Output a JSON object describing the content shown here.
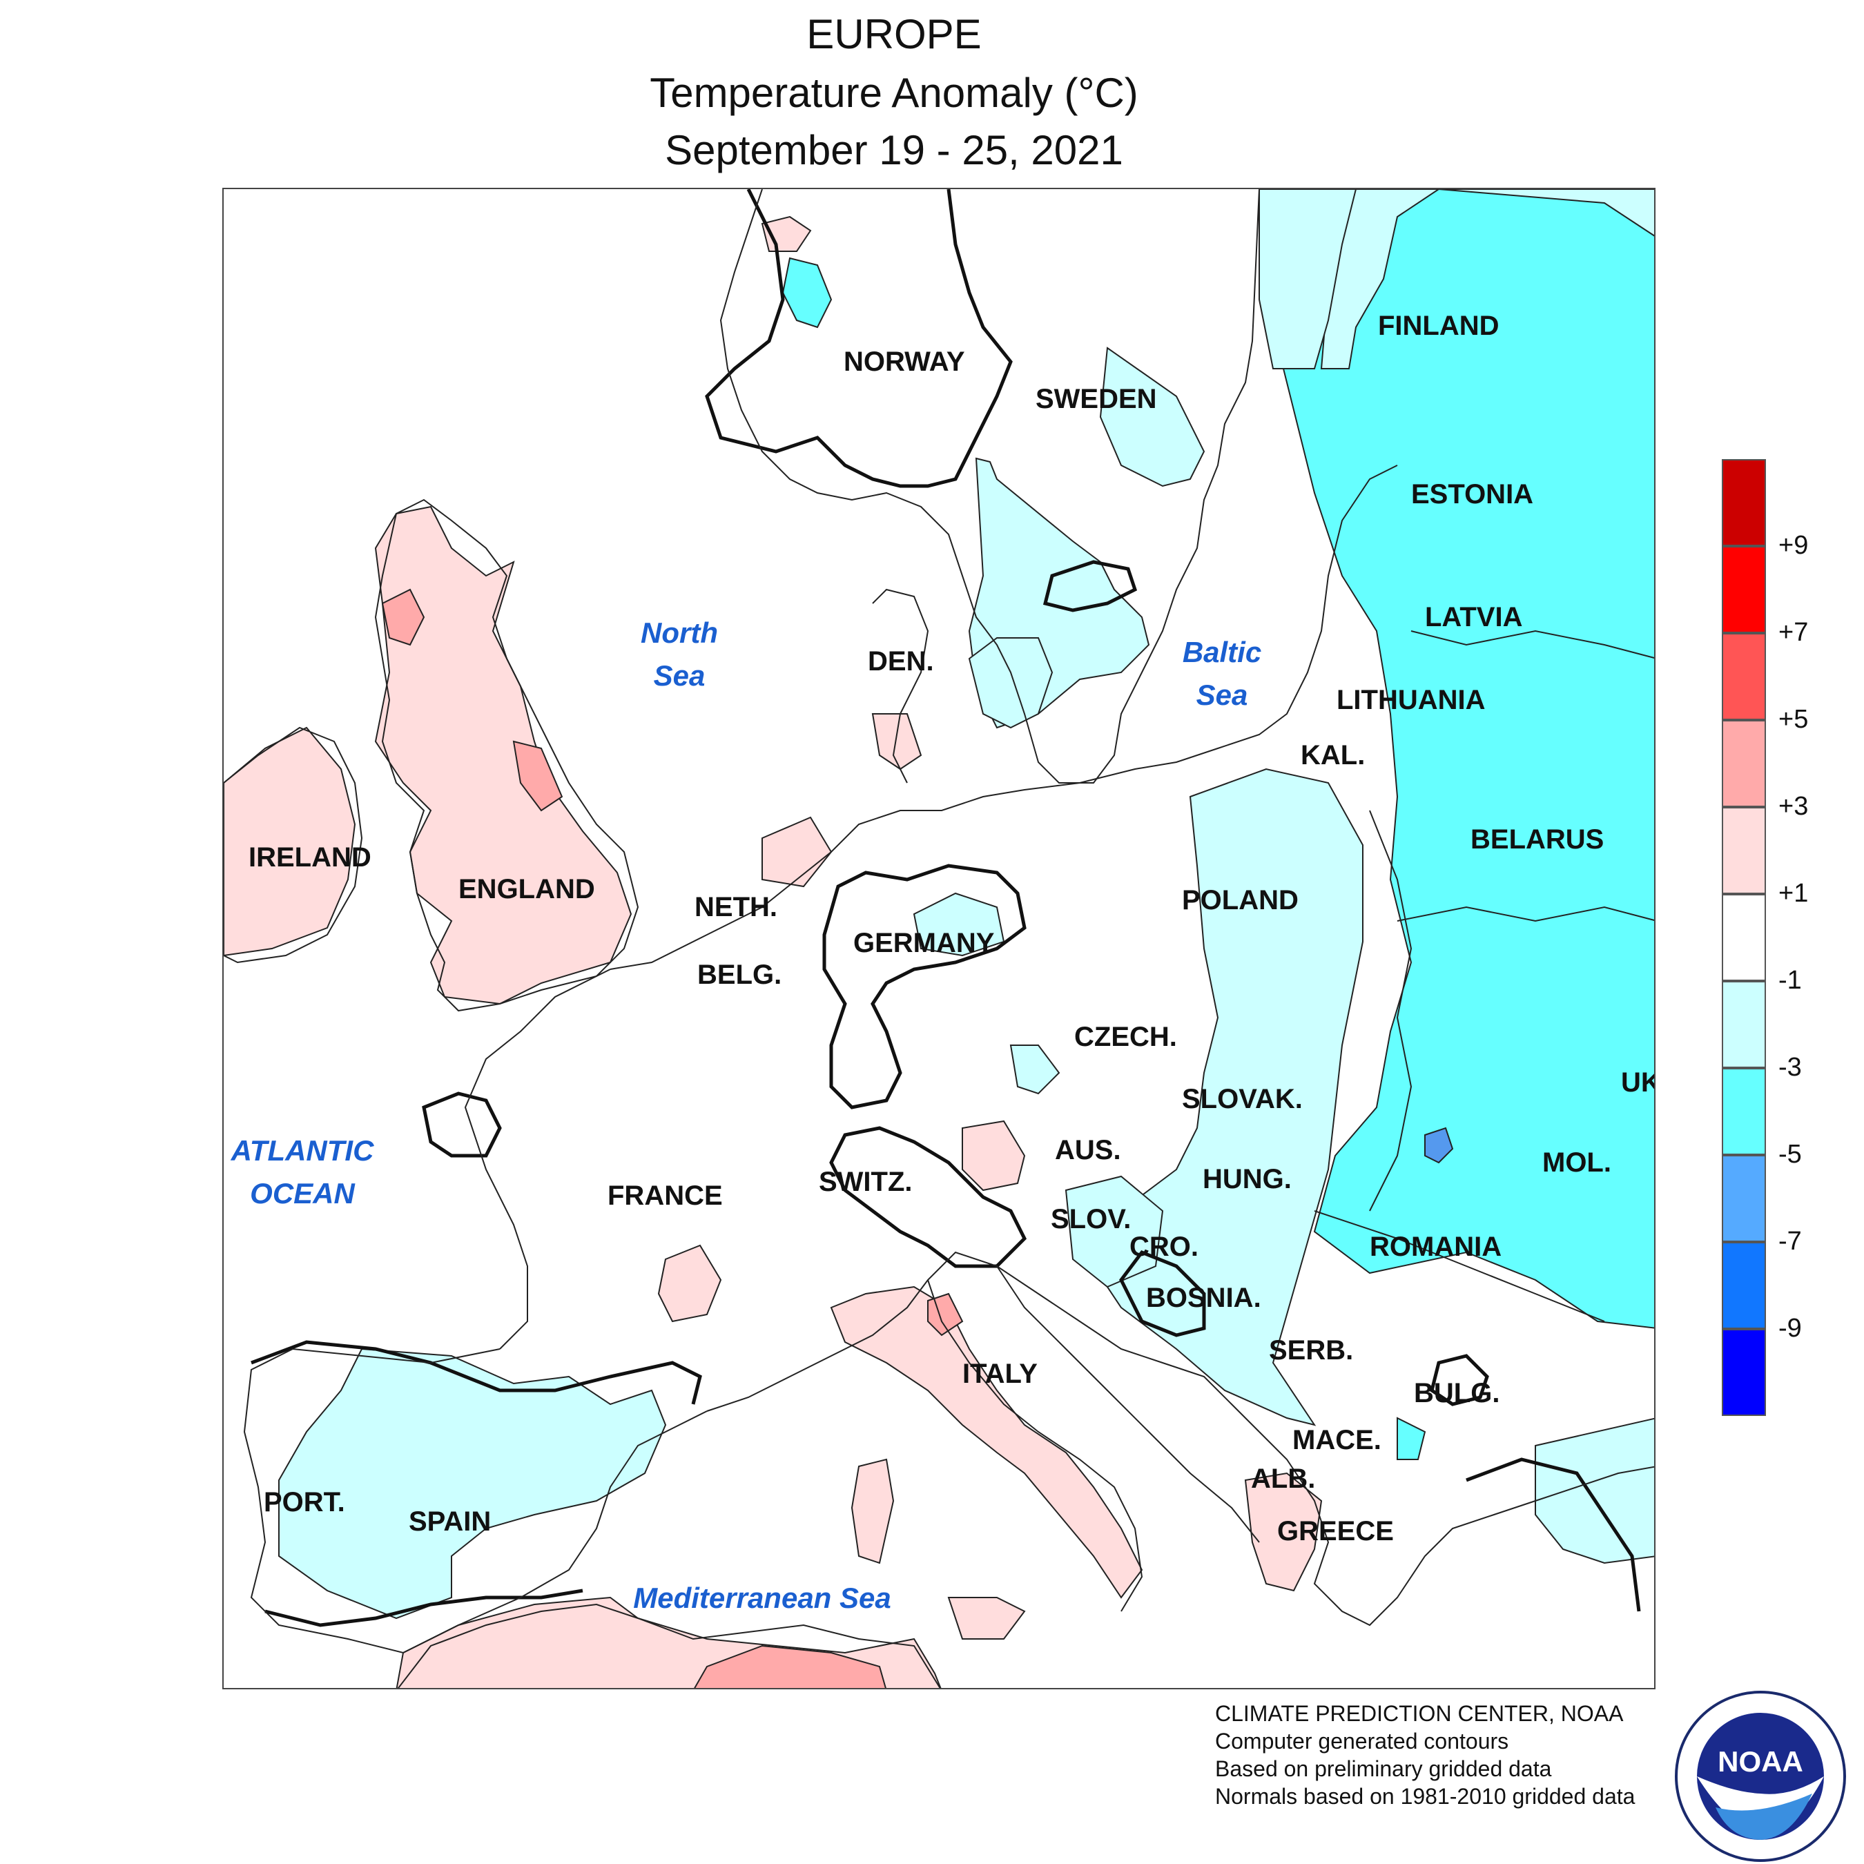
{
  "header": {
    "region": "EUROPE",
    "product": "Temperature Anomaly (°C)",
    "period": "September 19 - 25, 2021"
  },
  "map_labels": {
    "countries": [
      {
        "key": "finland",
        "text": "FINLAND"
      },
      {
        "key": "norway",
        "text": "NORWAY"
      },
      {
        "key": "sweden",
        "text": "SWEDEN"
      },
      {
        "key": "estonia",
        "text": "ESTONIA"
      },
      {
        "key": "latvia",
        "text": "LATVIA"
      },
      {
        "key": "lithuania",
        "text": "LITHUANIA"
      },
      {
        "key": "kal",
        "text": "KAL."
      },
      {
        "key": "belarus",
        "text": "BELARUS"
      },
      {
        "key": "den",
        "text": "DEN."
      },
      {
        "key": "ireland",
        "text": "IRELAND"
      },
      {
        "key": "england",
        "text": "ENGLAND"
      },
      {
        "key": "neth",
        "text": "NETH."
      },
      {
        "key": "belg",
        "text": "BELG."
      },
      {
        "key": "germany",
        "text": "GERMANY"
      },
      {
        "key": "poland",
        "text": "POLAND"
      },
      {
        "key": "czech",
        "text": "CZECH."
      },
      {
        "key": "slovak",
        "text": "SLOVAK."
      },
      {
        "key": "uk",
        "text": "UK"
      },
      {
        "key": "switz",
        "text": "SWITZ."
      },
      {
        "key": "aus",
        "text": "AUS."
      },
      {
        "key": "hung",
        "text": "HUNG."
      },
      {
        "key": "mol",
        "text": "MOL."
      },
      {
        "key": "france",
        "text": "FRANCE"
      },
      {
        "key": "slov",
        "text": "SLOV."
      },
      {
        "key": "cro",
        "text": "CRO."
      },
      {
        "key": "romania",
        "text": "ROMANIA"
      },
      {
        "key": "bosnia",
        "text": "BOSNIA."
      },
      {
        "key": "serb",
        "text": "SERB."
      },
      {
        "key": "italy",
        "text": "ITALY"
      },
      {
        "key": "bulg",
        "text": "BULG."
      },
      {
        "key": "mace",
        "text": "MACE."
      },
      {
        "key": "alb",
        "text": "ALB."
      },
      {
        "key": "greece",
        "text": "GREECE"
      },
      {
        "key": "port",
        "text": "PORT."
      },
      {
        "key": "spain",
        "text": "SPAIN"
      }
    ],
    "seas": [
      {
        "key": "north_sea",
        "lines": [
          "North",
          "Sea"
        ]
      },
      {
        "key": "baltic_sea",
        "lines": [
          "Baltic",
          "Sea"
        ]
      },
      {
        "key": "atlantic",
        "lines": [
          "ATLANTIC",
          "OCEAN"
        ]
      },
      {
        "key": "med",
        "lines": [
          "Mediterranean Sea"
        ]
      }
    ]
  },
  "legend": {
    "colors": [
      "#cc0000",
      "#ff0000",
      "#ff5555",
      "#ffaaaa",
      "#ffdddd",
      "#ffffff",
      "#ccffff",
      "#66ffff",
      "#55aaff",
      "#1177ff",
      "#0000ff"
    ],
    "ticks": [
      "+9",
      "+7",
      "+5",
      "+3",
      "+1",
      "-1",
      "-3",
      "-5",
      "-7",
      "-9"
    ]
  },
  "colors": {
    "warm_1": "#ffdddd",
    "warm_3": "#ffaaaa",
    "cool_1": "#ccffff",
    "cool_3": "#66ffff",
    "cool_5": "#5599ee",
    "sea_label": "#1a5fd0"
  },
  "credits": [
    "CLIMATE PREDICTION CENTER, NOAA",
    "Computer generated contours",
    "Based on preliminary gridded data",
    "Normals based on 1981-2010 gridded data"
  ],
  "logo": {
    "text": "NOAA"
  }
}
